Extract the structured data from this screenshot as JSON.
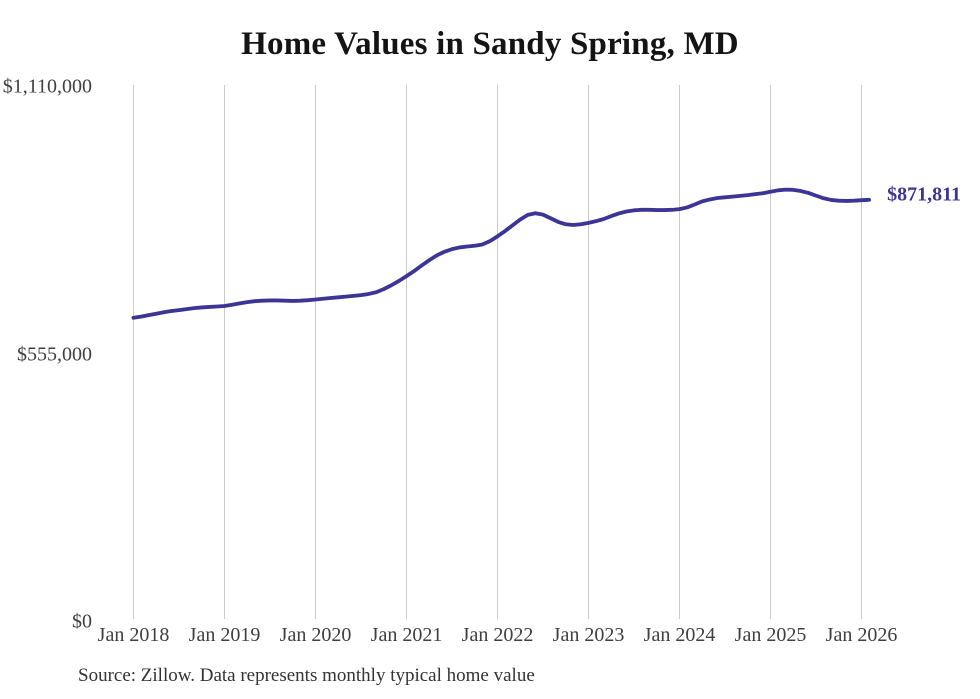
{
  "page": {
    "background": "#ffffff"
  },
  "chart_data": {
    "type": "line",
    "title": "Home Values in Sandy Spring, MD",
    "source_note": "Source: Zillow. Data represents monthly typical home value",
    "end_label": "$871,811",
    "end_value": 871811,
    "xlabel": "",
    "ylabel": "",
    "y_axis_range": [
      0,
      1110000
    ],
    "grid": "vertical-only",
    "legend": "none",
    "colors": {
      "line": "#3b3596",
      "grid": "#cbcbcb",
      "title": "#141414",
      "tick_label": "#3f3f3f",
      "source": "#333333"
    },
    "y_ticks": [
      {
        "label": "$0",
        "value": 0
      },
      {
        "label": "$555,000",
        "value": 555000
      },
      {
        "label": "$1,110,000",
        "value": 1110000
      }
    ],
    "x_tick_labels": [
      "Jan 2018",
      "Jan 2019",
      "Jan 2020",
      "Jan 2021",
      "Jan 2022",
      "Jan 2023",
      "Jan 2024",
      "Jan 2025",
      "Jan 2026"
    ],
    "series": [
      {
        "name": "Monthly typical home value",
        "x_start": "2018-01",
        "x_interval_months": 1,
        "values": [
          627000,
          629500,
          632500,
          635500,
          638500,
          641000,
          643000,
          645000,
          647000,
          648500,
          649500,
          650500,
          651500,
          654000,
          657000,
          659500,
          661500,
          662500,
          663000,
          663000,
          662500,
          662000,
          662500,
          663500,
          665000,
          666500,
          668000,
          669500,
          671000,
          672500,
          674000,
          676500,
          680000,
          686500,
          694500,
          703500,
          713500,
          724000,
          735500,
          746500,
          756500,
          764000,
          769500,
          773000,
          775000,
          776500,
          779000,
          786000,
          796000,
          807000,
          819000,
          831000,
          840500,
          844000,
          841000,
          833500,
          826000,
          821000,
          819500,
          821000,
          824000,
          827500,
          832000,
          838000,
          843500,
          847500,
          850000,
          851000,
          851000,
          850500,
          850500,
          851000,
          852500,
          856000,
          862000,
          868500,
          872500,
          875500,
          877000,
          878500,
          880000,
          881500,
          883500,
          885500,
          888500,
          891500,
          893000,
          892500,
          890000,
          886000,
          880500,
          875000,
          871500,
          870000,
          869500,
          870000,
          871000,
          871811
        ]
      }
    ]
  }
}
